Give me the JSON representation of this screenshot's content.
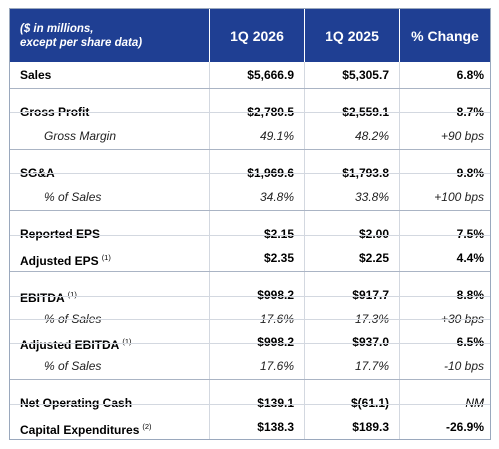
{
  "table": {
    "header": {
      "label": "($ in millions,\nexcept per share data)",
      "col1": "1Q 2026",
      "col2": "1Q 2025",
      "col3": "% Change"
    },
    "rows": [
      {
        "label": "Sales",
        "note": "",
        "v1": "$5,666.9",
        "v2": "$5,305.7",
        "v3": "6.8%",
        "kind": "main"
      },
      {
        "label": "Gross Profit",
        "note": "",
        "v1": "$2,780.5",
        "v2": "$2,559.1",
        "v3": "8.7%",
        "kind": "main"
      },
      {
        "label": "Gross Margin",
        "note": "",
        "v1": "49.1%",
        "v2": "48.2%",
        "v3": "+90 bps",
        "kind": "sub"
      },
      {
        "label": "SG&A",
        "note": "",
        "v1": "$1,969.6",
        "v2": "$1,793.8",
        "v3": "9.8%",
        "kind": "main"
      },
      {
        "label": "% of Sales",
        "note": "",
        "v1": "34.8%",
        "v2": "33.8%",
        "v3": "+100 bps",
        "kind": "sub"
      },
      {
        "label": "Reported EPS",
        "note": "",
        "v1": "$2.15",
        "v2": "$2.00",
        "v3": "7.5%",
        "kind": "main"
      },
      {
        "label": "Adjusted EPS",
        "note": "(1)",
        "v1": "$2.35",
        "v2": "$2.25",
        "v3": "4.4%",
        "kind": "main"
      },
      {
        "label": "EBITDA",
        "note": "(1)",
        "v1": "$998.2",
        "v2": "$917.7",
        "v3": "8.8%",
        "kind": "main"
      },
      {
        "label": "% of Sales",
        "note": "",
        "v1": "17.6%",
        "v2": "17.3%",
        "v3": "+30 bps",
        "kind": "sub"
      },
      {
        "label": "Adjusted EBITDA",
        "note": "(1)",
        "v1": "$998.2",
        "v2": "$937.0",
        "v3": "6.5%",
        "kind": "main"
      },
      {
        "label": "% of Sales",
        "note": "",
        "v1": "17.6%",
        "v2": "17.7%",
        "v3": "-10 bps",
        "kind": "sub"
      },
      {
        "label": "Net Operating Cash",
        "note": "",
        "v1": "$139.1",
        "v2": "$(61.1)",
        "v3": "NM",
        "kind": "main nm"
      },
      {
        "label": "Capital Expenditures",
        "note": "(2)",
        "v1": "$138.3",
        "v2": "$189.3",
        "v3": "-26.9%",
        "kind": "main"
      }
    ]
  }
}
